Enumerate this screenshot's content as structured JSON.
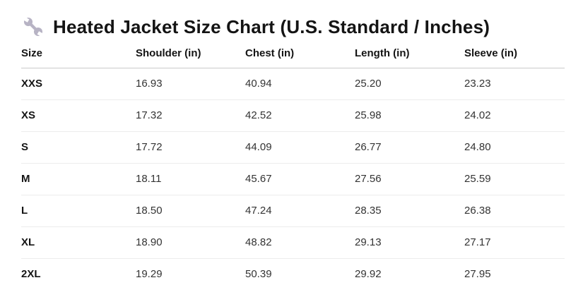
{
  "title": {
    "icon": "wrench-icon",
    "text": "Heated Jacket Size Chart (U.S. Standard / Inches)"
  },
  "table": {
    "columns": [
      "Size",
      "Shoulder (in)",
      "Chest (in)",
      "Length (in)",
      "Sleeve (in)"
    ],
    "rows": [
      {
        "size": "XXS",
        "shoulder": "16.93",
        "chest": "40.94",
        "length": "25.20",
        "sleeve": "23.23"
      },
      {
        "size": "XS",
        "shoulder": "17.32",
        "chest": "42.52",
        "length": "25.98",
        "sleeve": "24.02"
      },
      {
        "size": "S",
        "shoulder": "17.72",
        "chest": "44.09",
        "length": "26.77",
        "sleeve": "24.80"
      },
      {
        "size": "M",
        "shoulder": "18.11",
        "chest": "45.67",
        "length": "27.56",
        "sleeve": "25.59"
      },
      {
        "size": "L",
        "shoulder": "18.50",
        "chest": "47.24",
        "length": "28.35",
        "sleeve": "26.38"
      },
      {
        "size": "XL",
        "shoulder": "18.90",
        "chest": "48.82",
        "length": "29.13",
        "sleeve": "27.17"
      },
      {
        "size": "2XL",
        "shoulder": "19.29",
        "chest": "50.39",
        "length": "29.92",
        "sleeve": "27.95"
      }
    ]
  },
  "chart_data": {
    "type": "table",
    "title": "Heated Jacket Size Chart (U.S. Standard / Inches)",
    "columns": [
      "Size",
      "Shoulder (in)",
      "Chest (in)",
      "Length (in)",
      "Sleeve (in)"
    ],
    "rows": [
      [
        "XXS",
        16.93,
        40.94,
        25.2,
        23.23
      ],
      [
        "XS",
        17.32,
        42.52,
        25.98,
        24.02
      ],
      [
        "S",
        17.72,
        44.09,
        26.77,
        24.8
      ],
      [
        "M",
        18.11,
        45.67,
        27.56,
        25.59
      ],
      [
        "L",
        18.5,
        47.24,
        28.35,
        26.38
      ],
      [
        "XL",
        18.9,
        48.82,
        29.13,
        27.17
      ],
      [
        "2XL",
        19.29,
        50.39,
        29.92,
        27.95
      ]
    ]
  },
  "colors": {
    "icon": "#b7b3c4",
    "title_text": "#141414",
    "header_border": "#c9c9c9",
    "row_border": "#ececec",
    "cell_text": "#333333",
    "background": "#ffffff"
  }
}
